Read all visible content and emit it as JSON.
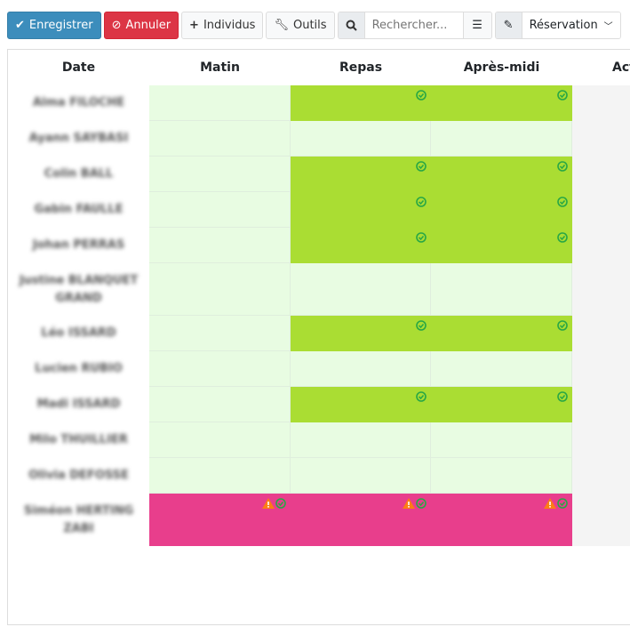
{
  "toolbar": {
    "save": "Enregistrer",
    "cancel": "Annuler",
    "individuals": "Individus",
    "tools": "Outils",
    "search_placeholder": "Rechercher...",
    "mode": "Réservation"
  },
  "columns": [
    "Date",
    "Matin",
    "Repas",
    "Après-midi",
    "Act"
  ],
  "colors": {
    "reserved": "#aadd33",
    "empty": "#e8fce2",
    "conflict": "#e83e8c",
    "action_bg": "#f4f4f4",
    "check": "#28a745",
    "warning": "#fd7e14"
  },
  "rows": [
    {
      "name": "Alma FILOCHE",
      "matin": "empty",
      "repas": "reserved",
      "apres_midi": "reserved"
    },
    {
      "name": "Ayann SAYBASI",
      "matin": "empty",
      "repas": "empty",
      "apres_midi": "empty"
    },
    {
      "name": "Colin BALL",
      "matin": "empty",
      "repas": "reserved",
      "apres_midi": "reserved"
    },
    {
      "name": "Gabin FAULLE",
      "matin": "empty",
      "repas": "reserved",
      "apres_midi": "reserved"
    },
    {
      "name": "Johan PERRAS",
      "matin": "empty",
      "repas": "reserved",
      "apres_midi": "reserved"
    },
    {
      "name": "Justine BLANQUET GRAND",
      "matin": "empty",
      "repas": "empty",
      "apres_midi": "empty"
    },
    {
      "name": "Léo ISSARD",
      "matin": "empty",
      "repas": "reserved",
      "apres_midi": "reserved"
    },
    {
      "name": "Lucien RUBIO",
      "matin": "empty",
      "repas": "empty",
      "apres_midi": "empty"
    },
    {
      "name": "Madi ISSARD",
      "matin": "empty",
      "repas": "reserved",
      "apres_midi": "reserved"
    },
    {
      "name": "Milo THUILLIER",
      "matin": "empty",
      "repas": "empty",
      "apres_midi": "empty"
    },
    {
      "name": "Olivia DEFOSSE",
      "matin": "empty",
      "repas": "empty",
      "apres_midi": "empty"
    },
    {
      "name": "Siméon HERTING ZABI",
      "matin": "conflict",
      "repas": "conflict",
      "apres_midi": "conflict"
    }
  ]
}
